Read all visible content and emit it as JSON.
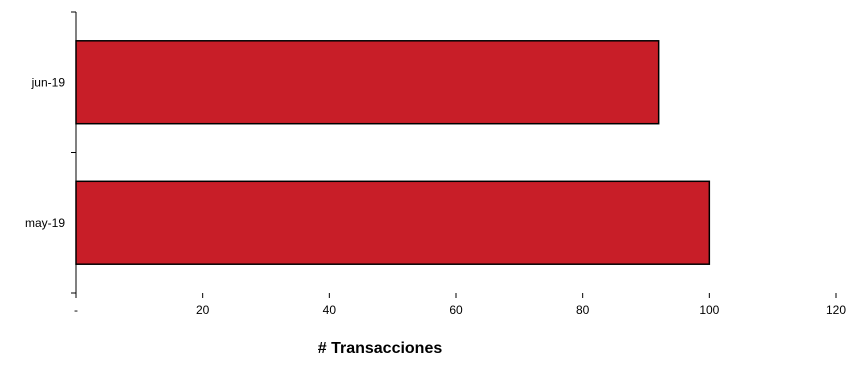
{
  "chart_data": {
    "type": "bar",
    "orientation": "horizontal",
    "categories": [
      "may-19",
      "jun-19"
    ],
    "values": [
      100,
      92
    ],
    "title": "",
    "xlabel": "# Transacciones",
    "ylabel": "",
    "xlim": [
      0,
      120
    ],
    "x_ticks": [
      0,
      20,
      40,
      60,
      80,
      100,
      120
    ],
    "x_tick_labels": [
      "-",
      "20",
      "40",
      "60",
      "80",
      "100",
      "120"
    ],
    "grid": false,
    "legend": "none",
    "bar_color": "#C81E28",
    "bar_edge_color": "#000000"
  }
}
